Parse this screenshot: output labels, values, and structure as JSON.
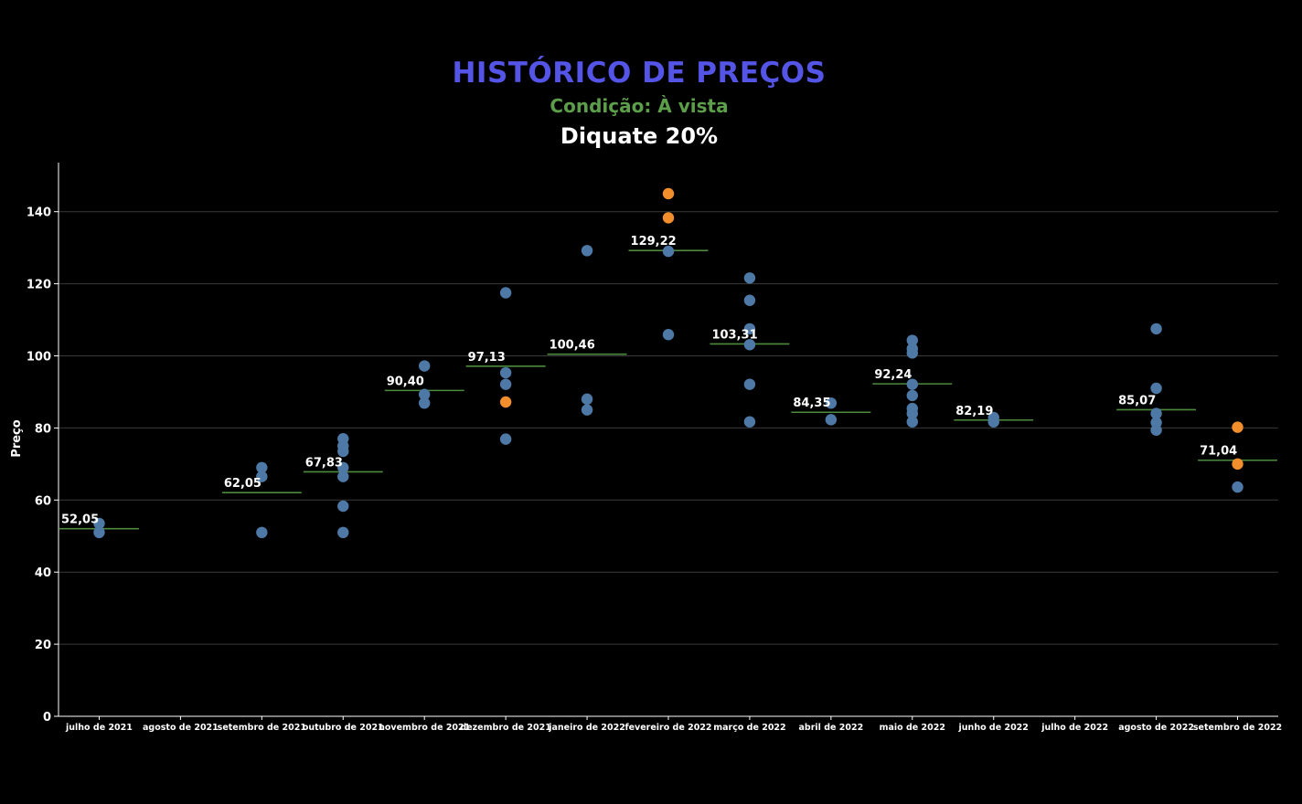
{
  "header": {
    "title": "HISTÓRICO DE PREÇOS",
    "subtitle": "Condição: À vista",
    "product": "Diquate 20%"
  },
  "colors": {
    "background": "#000000",
    "title": "#5454e6",
    "subtitle": "#5c9e4a",
    "point_primary": "#4e79a7",
    "point_highlight": "#f28e2b",
    "average_line": "#4e8a3e",
    "gridline": "#3a3a3a"
  },
  "chart_data": {
    "type": "scatter",
    "ylabel": "Preço",
    "xlabel": "",
    "ylim": [
      0,
      150
    ],
    "yticks": [
      0,
      20,
      40,
      60,
      80,
      100,
      120,
      140
    ],
    "grid": true,
    "categories": [
      "julho de 2021",
      "agosto de 2021",
      "setembro de 2021",
      "outubro de 2021",
      "novembro de 2021",
      "dezembro de 2021",
      "janeiro de 2022",
      "fevereiro de 2022",
      "março de 2022",
      "abril de 2022",
      "maio de 2022",
      "junho de 2022",
      "julho de 2022",
      "agosto de 2022",
      "setembro de 2022"
    ],
    "averages": [
      {
        "category": "julho de 2021",
        "value": 52.05,
        "label": "52,05"
      },
      {
        "category": "setembro de 2021",
        "value": 62.05,
        "label": "62,05"
      },
      {
        "category": "outubro de 2021",
        "value": 67.83,
        "label": "67,83"
      },
      {
        "category": "novembro de 2021",
        "value": 90.4,
        "label": "90,40"
      },
      {
        "category": "dezembro de 2021",
        "value": 97.13,
        "label": "97,13"
      },
      {
        "category": "janeiro de 2022",
        "value": 100.46,
        "label": "100,46"
      },
      {
        "category": "fevereiro de 2022",
        "value": 129.22,
        "label": "129,22"
      },
      {
        "category": "março de 2022",
        "value": 103.31,
        "label": "103,31"
      },
      {
        "category": "abril de 2022",
        "value": 84.35,
        "label": "84,35"
      },
      {
        "category": "maio de 2022",
        "value": 92.24,
        "label": "92,24"
      },
      {
        "category": "junho de 2022",
        "value": 82.19,
        "label": "82,19"
      },
      {
        "category": "agosto de 2022",
        "value": 85.07,
        "label": "85,07"
      },
      {
        "category": "setembro de 2022",
        "value": 71.04,
        "label": "71,04"
      }
    ],
    "points": [
      {
        "category": "julho de 2021",
        "y": 53.5,
        "highlight": false
      },
      {
        "category": "julho de 2021",
        "y": 51.0,
        "highlight": false
      },
      {
        "category": "setembro de 2021",
        "y": 69.0,
        "highlight": false
      },
      {
        "category": "setembro de 2021",
        "y": 66.5,
        "highlight": false
      },
      {
        "category": "setembro de 2021",
        "y": 51.0,
        "highlight": false
      },
      {
        "category": "outubro de 2021",
        "y": 77.0,
        "highlight": false
      },
      {
        "category": "outubro de 2021",
        "y": 75.0,
        "highlight": false
      },
      {
        "category": "outubro de 2021",
        "y": 73.5,
        "highlight": false
      },
      {
        "category": "outubro de 2021",
        "y": 69.0,
        "highlight": false
      },
      {
        "category": "outubro de 2021",
        "y": 66.5,
        "highlight": false
      },
      {
        "category": "outubro de 2021",
        "y": 58.3,
        "highlight": false
      },
      {
        "category": "outubro de 2021",
        "y": 51.0,
        "highlight": false
      },
      {
        "category": "novembro de 2021",
        "y": 97.2,
        "highlight": false
      },
      {
        "category": "novembro de 2021",
        "y": 89.3,
        "highlight": false
      },
      {
        "category": "novembro de 2021",
        "y": 86.9,
        "highlight": false
      },
      {
        "category": "dezembro de 2021",
        "y": 117.5,
        "highlight": false
      },
      {
        "category": "dezembro de 2021",
        "y": 95.3,
        "highlight": false
      },
      {
        "category": "dezembro de 2021",
        "y": 92.1,
        "highlight": false
      },
      {
        "category": "dezembro de 2021",
        "y": 87.2,
        "highlight": true
      },
      {
        "category": "dezembro de 2021",
        "y": 76.9,
        "highlight": false
      },
      {
        "category": "janeiro de 2022",
        "y": 129.2,
        "highlight": false
      },
      {
        "category": "janeiro de 2022",
        "y": 88.0,
        "highlight": false
      },
      {
        "category": "janeiro de 2022",
        "y": 85.0,
        "highlight": false
      },
      {
        "category": "fevereiro de 2022",
        "y": 145.0,
        "highlight": true
      },
      {
        "category": "fevereiro de 2022",
        "y": 138.3,
        "highlight": true
      },
      {
        "category": "fevereiro de 2022",
        "y": 129.0,
        "highlight": false
      },
      {
        "category": "fevereiro de 2022",
        "y": 105.9,
        "highlight": false
      },
      {
        "category": "março de 2022",
        "y": 121.6,
        "highlight": false
      },
      {
        "category": "março de 2022",
        "y": 115.4,
        "highlight": false
      },
      {
        "category": "março de 2022",
        "y": 107.5,
        "highlight": false
      },
      {
        "category": "março de 2022",
        "y": 103.1,
        "highlight": false
      },
      {
        "category": "março de 2022",
        "y": 92.1,
        "highlight": false
      },
      {
        "category": "março de 2022",
        "y": 81.7,
        "highlight": false
      },
      {
        "category": "abril de 2022",
        "y": 86.9,
        "highlight": false
      },
      {
        "category": "abril de 2022",
        "y": 82.3,
        "highlight": false
      },
      {
        "category": "maio de 2022",
        "y": 104.3,
        "highlight": false
      },
      {
        "category": "maio de 2022",
        "y": 102.0,
        "highlight": false
      },
      {
        "category": "maio de 2022",
        "y": 100.8,
        "highlight": false
      },
      {
        "category": "maio de 2022",
        "y": 92.1,
        "highlight": false
      },
      {
        "category": "maio de 2022",
        "y": 89.0,
        "highlight": false
      },
      {
        "category": "maio de 2022",
        "y": 85.4,
        "highlight": false
      },
      {
        "category": "maio de 2022",
        "y": 84.0,
        "highlight": false
      },
      {
        "category": "maio de 2022",
        "y": 81.7,
        "highlight": false
      },
      {
        "category": "junho de 2022",
        "y": 82.9,
        "highlight": false
      },
      {
        "category": "junho de 2022",
        "y": 81.7,
        "highlight": false
      },
      {
        "category": "agosto de 2022",
        "y": 107.5,
        "highlight": false
      },
      {
        "category": "agosto de 2022",
        "y": 91.0,
        "highlight": false
      },
      {
        "category": "agosto de 2022",
        "y": 84.0,
        "highlight": false
      },
      {
        "category": "agosto de 2022",
        "y": 81.5,
        "highlight": false
      },
      {
        "category": "agosto de 2022",
        "y": 79.4,
        "highlight": false
      },
      {
        "category": "setembro de 2022",
        "y": 80.2,
        "highlight": true
      },
      {
        "category": "setembro de 2022",
        "y": 70.0,
        "highlight": true
      },
      {
        "category": "setembro de 2022",
        "y": 63.6,
        "highlight": false
      }
    ]
  }
}
